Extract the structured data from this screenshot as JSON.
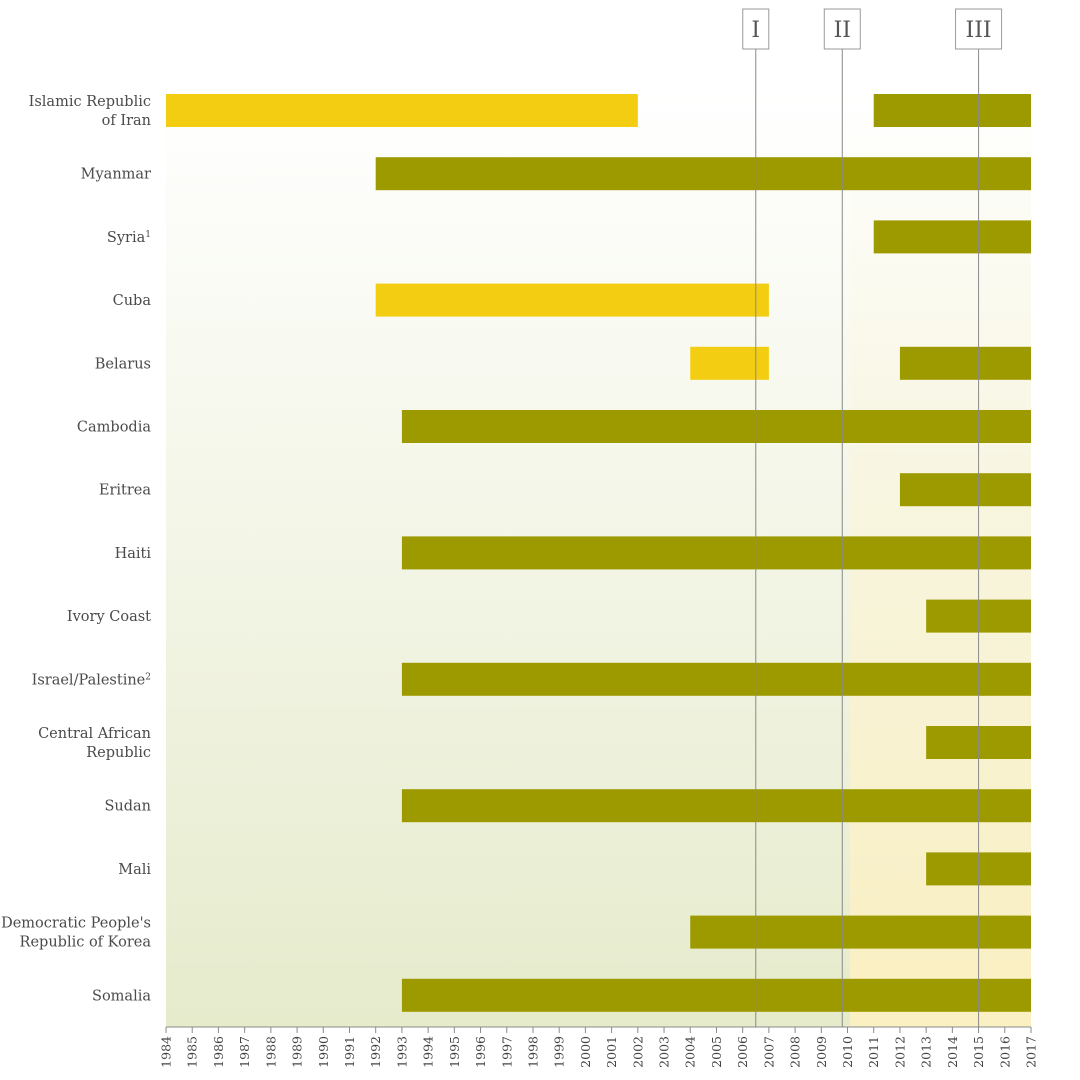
{
  "chart_data": {
    "type": "timeline-bar",
    "title": "",
    "xlabel": "",
    "ylabel": "",
    "xlim": [
      1984,
      2017
    ],
    "x_ticks": [
      1984,
      1985,
      1986,
      1987,
      1988,
      1989,
      1990,
      1991,
      1992,
      1993,
      1994,
      1995,
      1996,
      1997,
      1998,
      1999,
      2000,
      2001,
      2002,
      2003,
      2004,
      2005,
      2006,
      2007,
      2008,
      2009,
      2010,
      2011,
      2012,
      2013,
      2014,
      2015,
      2016,
      2017
    ],
    "colors": {
      "yellow": "#f2cd12",
      "olive": "#9d9a00"
    },
    "markers": [
      {
        "label": "I",
        "x": 2006.5
      },
      {
        "label": "II",
        "x": 2009.8
      },
      {
        "label": "III",
        "x": 2015
      }
    ],
    "rows": [
      {
        "label_lines": [
          "Islamic Republic",
          "of Iran"
        ],
        "sup": "",
        "segments": [
          {
            "start": 1984,
            "end": 2002,
            "color": "yellow"
          },
          {
            "start": 2011,
            "end": 2017,
            "color": "olive"
          }
        ]
      },
      {
        "label_lines": [
          "Myanmar"
        ],
        "sup": "",
        "segments": [
          {
            "start": 1992,
            "end": 2017,
            "color": "olive"
          }
        ]
      },
      {
        "label_lines": [
          "Syria"
        ],
        "sup": "1",
        "segments": [
          {
            "start": 2011,
            "end": 2017,
            "color": "olive"
          }
        ]
      },
      {
        "label_lines": [
          "Cuba"
        ],
        "sup": "",
        "segments": [
          {
            "start": 1992,
            "end": 2007,
            "color": "yellow"
          }
        ]
      },
      {
        "label_lines": [
          "Belarus"
        ],
        "sup": "",
        "segments": [
          {
            "start": 2004,
            "end": 2007,
            "color": "yellow"
          },
          {
            "start": 2012,
            "end": 2017,
            "color": "olive"
          }
        ]
      },
      {
        "label_lines": [
          "Cambodia"
        ],
        "sup": "",
        "segments": [
          {
            "start": 1993,
            "end": 2017,
            "color": "olive"
          }
        ]
      },
      {
        "label_lines": [
          "Eritrea"
        ],
        "sup": "",
        "segments": [
          {
            "start": 2012,
            "end": 2017,
            "color": "olive"
          }
        ]
      },
      {
        "label_lines": [
          "Haiti"
        ],
        "sup": "",
        "segments": [
          {
            "start": 1993,
            "end": 2017,
            "color": "olive"
          }
        ]
      },
      {
        "label_lines": [
          "Ivory Coast"
        ],
        "sup": "",
        "segments": [
          {
            "start": 2013,
            "end": 2017,
            "color": "olive"
          }
        ]
      },
      {
        "label_lines": [
          "Israel/Palestine"
        ],
        "sup": "2",
        "segments": [
          {
            "start": 1993,
            "end": 2017,
            "color": "olive"
          }
        ]
      },
      {
        "label_lines": [
          "Central African",
          "Republic"
        ],
        "sup": "",
        "segments": [
          {
            "start": 2013,
            "end": 2017,
            "color": "olive"
          }
        ]
      },
      {
        "label_lines": [
          "Sudan"
        ],
        "sup": "",
        "segments": [
          {
            "start": 1993,
            "end": 2017,
            "color": "olive"
          }
        ]
      },
      {
        "label_lines": [
          "Mali"
        ],
        "sup": "",
        "segments": [
          {
            "start": 2013,
            "end": 2017,
            "color": "olive"
          }
        ]
      },
      {
        "label_lines": [
          "Democratic People's",
          "Republic of Korea"
        ],
        "sup": "",
        "segments": [
          {
            "start": 2004,
            "end": 2017,
            "color": "olive"
          }
        ]
      },
      {
        "label_lines": [
          "Somalia"
        ],
        "sup": "",
        "segments": [
          {
            "start": 1993,
            "end": 2017,
            "color": "olive"
          }
        ]
      }
    ]
  }
}
